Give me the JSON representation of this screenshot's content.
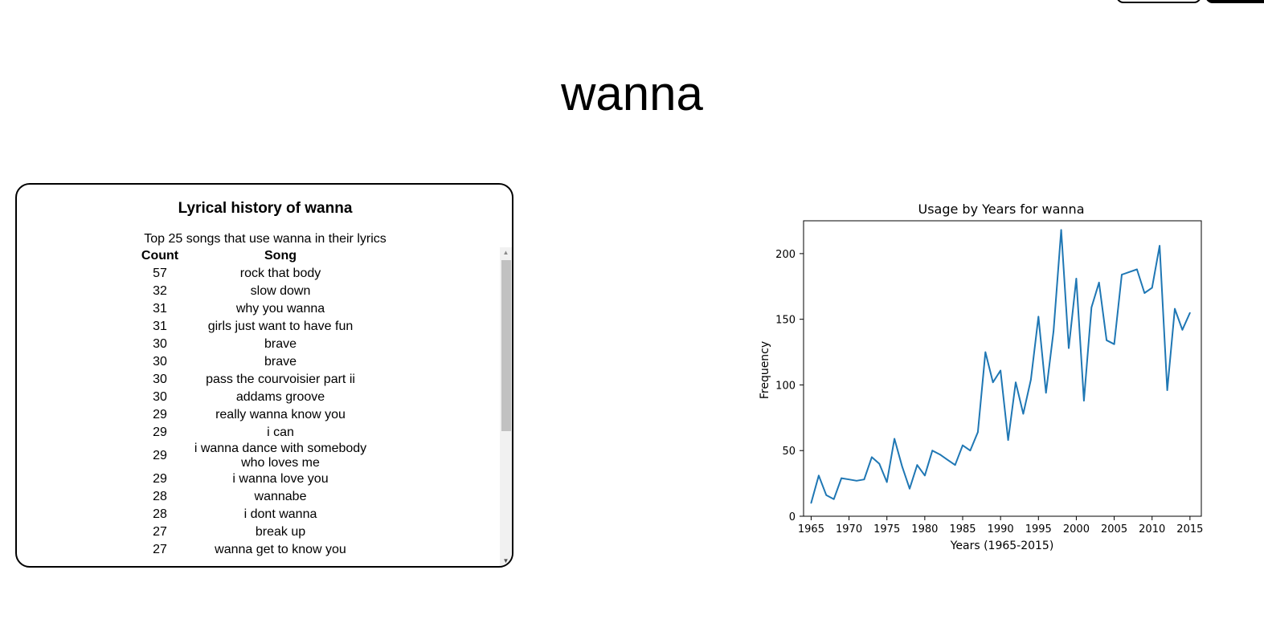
{
  "page": {
    "title": "wanna"
  },
  "card": {
    "heading": "Lyrical history of wanna",
    "subheading": "Top 25 songs that use wanna in their lyrics",
    "columns": [
      "Count",
      "Song"
    ],
    "rows": [
      {
        "count": "57",
        "song": "rock that body"
      },
      {
        "count": "32",
        "song": "slow down"
      },
      {
        "count": "31",
        "song": "why you wanna"
      },
      {
        "count": "31",
        "song": "girls just want to have fun"
      },
      {
        "count": "30",
        "song": "brave"
      },
      {
        "count": "30",
        "song": "brave"
      },
      {
        "count": "30",
        "song": "pass the courvoisier part ii"
      },
      {
        "count": "30",
        "song": "addams groove"
      },
      {
        "count": "29",
        "song": "really wanna know you"
      },
      {
        "count": "29",
        "song": "i can"
      },
      {
        "count": "29",
        "song": "i wanna dance with somebody who loves me"
      },
      {
        "count": "29",
        "song": "i wanna love you"
      },
      {
        "count": "28",
        "song": "wannabe"
      },
      {
        "count": "28",
        "song": "i dont wanna"
      },
      {
        "count": "27",
        "song": "break up"
      },
      {
        "count": "27",
        "song": "wanna get to know you"
      }
    ]
  },
  "chart_data": {
    "type": "line",
    "title": "Usage by Years for wanna",
    "xlabel": "Years (1965-2015)",
    "ylabel": "Frequency",
    "xlim": [
      1964,
      2016.5
    ],
    "ylim": [
      0,
      225
    ],
    "xticks": [
      1965,
      1970,
      1975,
      1980,
      1985,
      1990,
      1995,
      2000,
      2005,
      2010,
      2015
    ],
    "yticks": [
      0,
      50,
      100,
      150,
      200
    ],
    "grid": false,
    "color": "#1f77b4",
    "x": [
      1965,
      1966,
      1967,
      1968,
      1969,
      1970,
      1971,
      1972,
      1973,
      1974,
      1975,
      1976,
      1977,
      1978,
      1979,
      1980,
      1981,
      1982,
      1983,
      1984,
      1985,
      1986,
      1987,
      1988,
      1989,
      1990,
      1991,
      1992,
      1993,
      1994,
      1995,
      1996,
      1997,
      1998,
      1999,
      2000,
      2001,
      2002,
      2003,
      2004,
      2005,
      2006,
      2007,
      2008,
      2009,
      2010,
      2011,
      2012,
      2013,
      2014,
      2015
    ],
    "y": [
      10,
      31,
      16,
      13,
      29,
      28,
      27,
      28,
      45,
      40,
      26,
      59,
      38,
      21,
      39,
      31,
      50,
      47,
      43,
      39,
      54,
      50,
      64,
      125,
      102,
      111,
      58,
      102,
      78,
      104,
      152,
      94,
      141,
      218,
      128,
      181,
      88,
      159,
      178,
      134,
      131,
      184,
      186,
      188,
      170,
      174,
      206,
      96,
      158,
      142,
      155
    ]
  }
}
